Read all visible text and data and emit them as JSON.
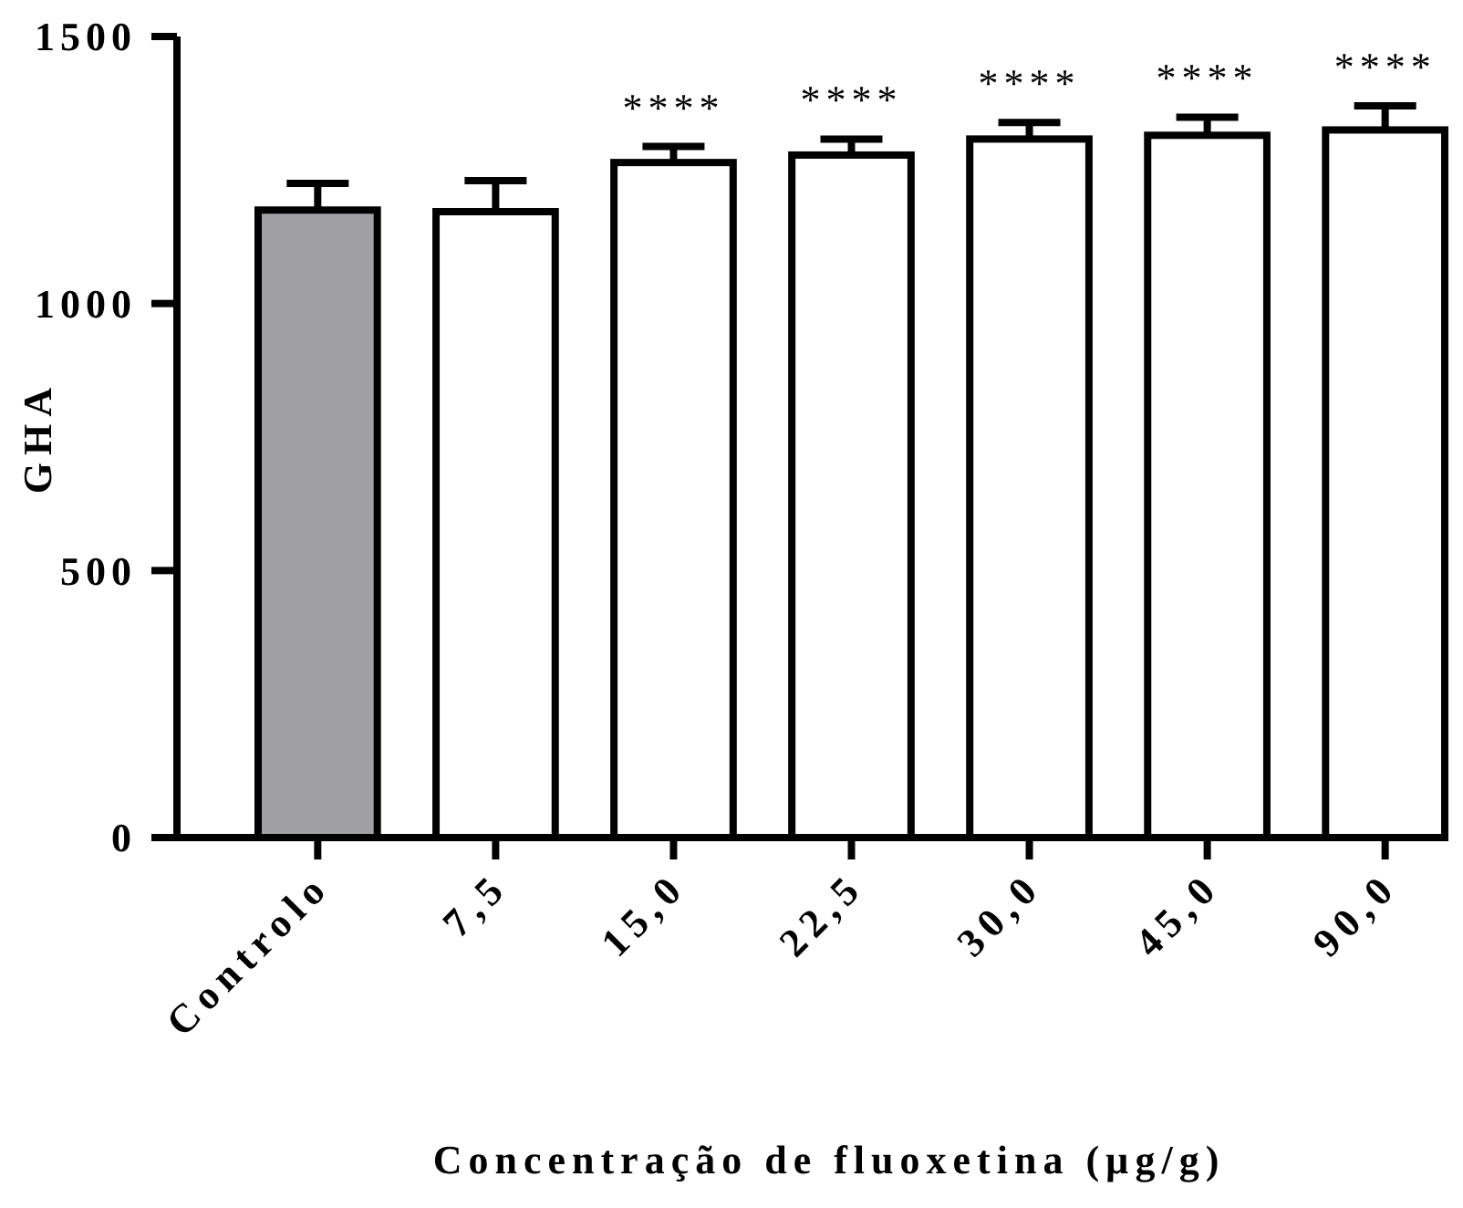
{
  "chart_data": {
    "type": "bar",
    "xlabel": "Concentração de fluoxetina (µg/g)",
    "ylabel": "GHA",
    "categories": [
      "Controlo",
      "7,5",
      "15,0",
      "22,5",
      "30,0",
      "45,0",
      "90,0"
    ],
    "values": [
      1175,
      1172,
      1264,
      1278,
      1308,
      1315,
      1325
    ],
    "errors": [
      [
        1175,
        1225
      ],
      [
        1172,
        1230
      ],
      [
        1264,
        1294
      ],
      [
        1278,
        1308
      ],
      [
        1308,
        1339
      ],
      [
        1315,
        1349
      ],
      [
        1325,
        1370
      ]
    ],
    "colors": [
      "#a09fa4",
      "#ffffff",
      "#ffffff",
      "#ffffff",
      "#ffffff",
      "#ffffff",
      "#ffffff"
    ],
    "ylim": [
      0,
      1500
    ],
    "yticks": [
      0,
      500,
      1000,
      1500
    ],
    "grid": false,
    "annotations": [
      {
        "text": "****",
        "x": "15,0",
        "y": 1264
      },
      {
        "text": "****",
        "x": "22,5",
        "y": 1278
      },
      {
        "text": "****",
        "x": "30,0",
        "y": 1308
      },
      {
        "text": "****",
        "x": "45,0",
        "y": 1315
      },
      {
        "text": "****",
        "x": "90,0",
        "y": 1325
      }
    ]
  }
}
